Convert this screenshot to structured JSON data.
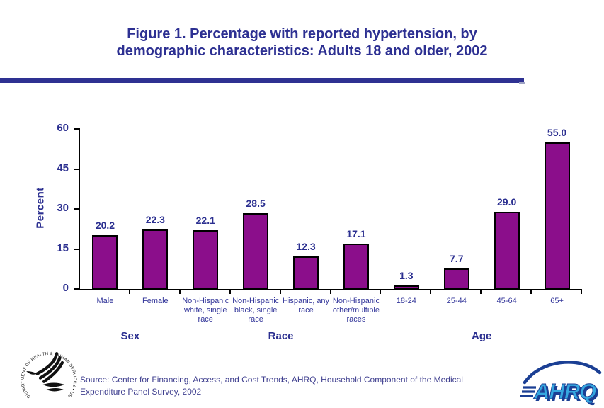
{
  "header": {
    "title_line1": "Figure 1. Percentage with reported hypertension, by",
    "title_line2": "demographic characteristics: Adults 18 and older, 2002"
  },
  "chart_data": {
    "type": "bar",
    "title": "Figure 1. Percentage with reported hypertension, by demographic characteristics: Adults 18 and older, 2002",
    "ylabel": "Percent",
    "xlabel": "",
    "ylim": [
      0,
      60
    ],
    "yticks": [
      0,
      15,
      30,
      45,
      60
    ],
    "grid": false,
    "legend_position": "none",
    "bar_color": "#8B0E8B",
    "categories": [
      "Male",
      "Female",
      "Non-Hispanic\nwhite, single\nrace",
      "Non-Hispanic\nblack, single\nrace",
      "Hispanic, any\nrace",
      "Non-Hispanic\nother/multiple\nraces",
      "18-24",
      "25-44",
      "45-64",
      "65+"
    ],
    "values": [
      20.2,
      22.3,
      22.1,
      28.5,
      12.3,
      17.1,
      1.3,
      7.7,
      29.0,
      55.0
    ],
    "value_labels": [
      "20.2",
      "22.3",
      "22.1",
      "28.5",
      "12.3",
      "17.1",
      "1.3",
      "7.7",
      "29.0",
      "55.0"
    ],
    "groups": [
      {
        "label": "Sex",
        "start": 0,
        "end": 1
      },
      {
        "label": "Race",
        "start": 2,
        "end": 5
      },
      {
        "label": "Age",
        "start": 6,
        "end": 9
      }
    ]
  },
  "footer": {
    "source": "Source: Center for Financing, Access, and Cost Trends, AHRQ, Household Component of the Medical\nExpenditure Panel Survey, 2002"
  },
  "logos": {
    "hhs_text": "DEPARTMENT OF HEALTH & HUMAN SERVICES • USA",
    "ahrq_text": "AHRQ"
  },
  "colors": {
    "title_blue": "#2D3092",
    "rule_blue": "#2E3192",
    "bar_purple": "#8B0E8B",
    "label_blue": "#2B2F90",
    "category_blue": "#33369A",
    "source_blue": "#3F3F8F",
    "ahrq_light_blue": "#35A8E0",
    "ahrq_dark_blue": "#1B3F94"
  }
}
